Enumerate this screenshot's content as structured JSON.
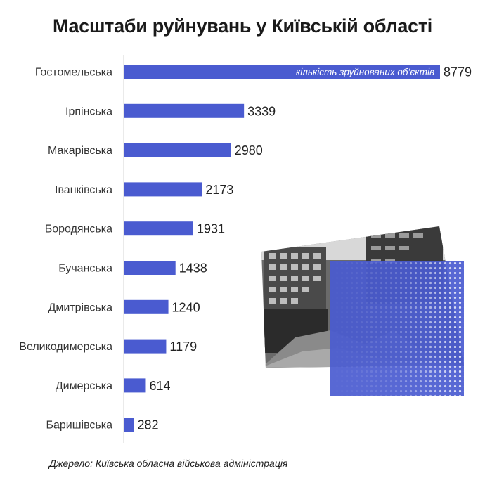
{
  "colors": {
    "bar": "#4a5bd0",
    "axis": "#d0d0d0",
    "text": "#222222",
    "photo_overlay": "#4a5bd0"
  },
  "illustration": {
    "name": "destroyed-building-photo",
    "overlay_color": "#4a5bd0"
  },
  "chart_data": {
    "type": "bar",
    "orientation": "horizontal",
    "title": "Масштаби руйнувань у Київській області",
    "series_note": "кількість зруйнованих об’єктів",
    "categories": [
      "Гостомельська",
      "Ірпінська",
      "Макарівська",
      "Іванківська",
      "Бородянська",
      "Бучанська",
      "Дмитрівська",
      "Великодимерська",
      "Димерська",
      "Баришівська"
    ],
    "values": [
      8779,
      3339,
      2980,
      2173,
      1931,
      1438,
      1240,
      1179,
      614,
      282
    ],
    "xlim": [
      0,
      8779
    ],
    "grid": false,
    "source": "Джерело: Київська обласна військова адміністрація"
  }
}
